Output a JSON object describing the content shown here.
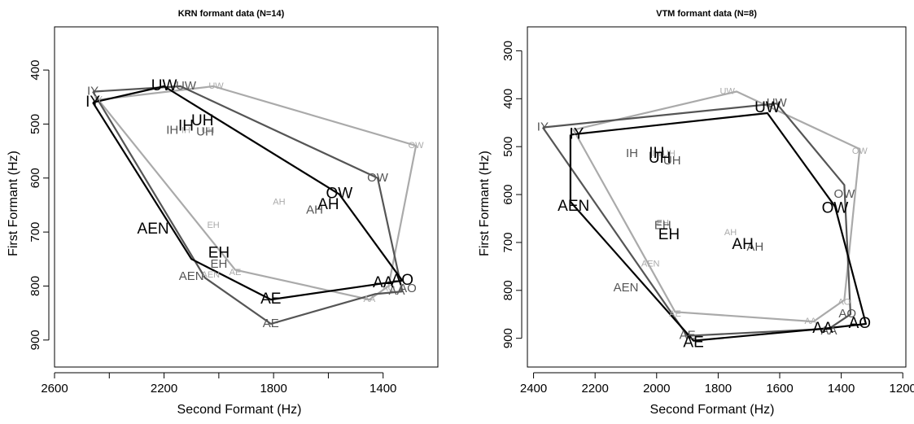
{
  "chart_data": [
    {
      "type": "scatter",
      "title": "KRN formant data (N=14)",
      "xlabel": "Second Formant (Hz)",
      "ylabel": "First Formant (Hz)",
      "xlim": [
        2600,
        1200
      ],
      "ylim": [
        950,
        320
      ],
      "xticks": [
        2600,
        2200,
        1800,
        1400
      ],
      "xminor": [
        2400,
        2000,
        1600
      ],
      "yticks": [
        400,
        500,
        600,
        700,
        800,
        900
      ],
      "series": [
        {
          "color": "#000000",
          "label_size": 19,
          "polygon": [
            [
              2460,
              460
            ],
            [
              2200,
              430
            ],
            [
              1560,
              630
            ],
            [
              1330,
              790
            ],
            [
              1400,
              795
            ],
            [
              1810,
              825
            ],
            [
              2100,
              750
            ],
            [
              2460,
              460
            ]
          ],
          "points": [
            {
              "label": "IY",
              "x": 2460,
              "y": 460
            },
            {
              "label": "UW",
              "x": 2200,
              "y": 430
            },
            {
              "label": "OW",
              "x": 1560,
              "y": 630
            },
            {
              "label": "AO",
              "x": 1330,
              "y": 790
            },
            {
              "label": "AA",
              "x": 1400,
              "y": 795
            },
            {
              "label": "AE",
              "x": 1810,
              "y": 825
            },
            {
              "label": "EH",
              "x": 2000,
              "y": 740
            },
            {
              "label": "AEN",
              "x": 2240,
              "y": 695
            },
            {
              "label": "IH",
              "x": 2120,
              "y": 505
            },
            {
              "label": "UH",
              "x": 2060,
              "y": 495
            },
            {
              "label": "AH",
              "x": 1600,
              "y": 650
            }
          ]
        },
        {
          "color": "#555555",
          "label_size": 15,
          "polygon": [
            [
              2460,
              440
            ],
            [
              2140,
              430
            ],
            [
              1420,
              600
            ],
            [
              1330,
              810
            ],
            [
              1430,
              815
            ],
            [
              1810,
              870
            ],
            [
              2050,
              785
            ],
            [
              2460,
              440
            ]
          ],
          "points": [
            {
              "label": "IY",
              "x": 2460,
              "y": 440
            },
            {
              "label": "UW",
              "x": 2120,
              "y": 430
            },
            {
              "label": "OW",
              "x": 1420,
              "y": 600
            },
            {
              "label": "AO",
              "x": 1310,
              "y": 805
            },
            {
              "label": "AA",
              "x": 1350,
              "y": 810
            },
            {
              "label": "AE",
              "x": 1810,
              "y": 870
            },
            {
              "label": "EH",
              "x": 2000,
              "y": 760
            },
            {
              "label": "AEN",
              "x": 2100,
              "y": 783
            },
            {
              "label": "IH",
              "x": 2170,
              "y": 512
            },
            {
              "label": "UH",
              "x": 2050,
              "y": 515
            },
            {
              "label": "AH",
              "x": 1650,
              "y": 660
            }
          ]
        },
        {
          "color": "#aaaaaa",
          "label_size": 11,
          "polygon": [
            [
              2440,
              455
            ],
            [
              2020,
              430
            ],
            [
              1280,
              540
            ],
            [
              1380,
              800
            ],
            [
              1450,
              825
            ],
            [
              1940,
              770
            ],
            [
              2440,
              455
            ]
          ],
          "points": [
            {
              "label": "IY",
              "x": 2440,
              "y": 455
            },
            {
              "label": "UW",
              "x": 2010,
              "y": 430
            },
            {
              "label": "OW",
              "x": 1280,
              "y": 540
            },
            {
              "label": "AO",
              "x": 1380,
              "y": 805
            },
            {
              "label": "AA",
              "x": 1450,
              "y": 825
            },
            {
              "label": "AE",
              "x": 1940,
              "y": 775
            },
            {
              "label": "EH",
              "x": 2020,
              "y": 688
            },
            {
              "label": "AEN",
              "x": 2030,
              "y": 780
            },
            {
              "label": "IH",
              "x": 2120,
              "y": 512
            },
            {
              "label": "UH",
              "x": 2040,
              "y": 512
            },
            {
              "label": "AH",
              "x": 1780,
              "y": 645
            }
          ]
        }
      ]
    },
    {
      "type": "scatter",
      "title": "VTM formant data (N=8)",
      "xlabel": "Second Formant (Hz)",
      "ylabel": "First Formant (Hz)",
      "xlim": [
        2420,
        1190
      ],
      "ylim": [
        960,
        250
      ],
      "xticks": [
        2400,
        2200,
        2000,
        1800,
        1600,
        1400,
        1200
      ],
      "xminor": [],
      "yticks": [
        300,
        400,
        500,
        600,
        700,
        800,
        900
      ],
      "series": [
        {
          "color": "#000000",
          "label_size": 19,
          "polygon": [
            [
              2280,
              475
            ],
            [
              1640,
              430
            ],
            [
              1420,
              625
            ],
            [
              1320,
              870
            ],
            [
              1460,
              880
            ],
            [
              1880,
              905
            ],
            [
              2280,
              615
            ],
            [
              2280,
              475
            ]
          ],
          "points": [
            {
              "label": "IY",
              "x": 2260,
              "y": 475
            },
            {
              "label": "UW",
              "x": 1640,
              "y": 420
            },
            {
              "label": "OW",
              "x": 1420,
              "y": 630
            },
            {
              "label": "AO",
              "x": 1340,
              "y": 870
            },
            {
              "label": "AA",
              "x": 1460,
              "y": 880
            },
            {
              "label": "AE",
              "x": 1880,
              "y": 910
            },
            {
              "label": "EH",
              "x": 1960,
              "y": 685
            },
            {
              "label": "AEN",
              "x": 2270,
              "y": 625
            },
            {
              "label": "IH",
              "x": 2000,
              "y": 515
            },
            {
              "label": "UH",
              "x": 1990,
              "y": 525
            },
            {
              "label": "AH",
              "x": 1720,
              "y": 705
            }
          ]
        },
        {
          "color": "#555555",
          "label_size": 15,
          "polygon": [
            [
              2370,
              460
            ],
            [
              1610,
              410
            ],
            [
              1390,
              580
            ],
            [
              1370,
              850
            ],
            [
              1440,
              880
            ],
            [
              1900,
              895
            ],
            [
              2370,
              460
            ]
          ],
          "points": [
            {
              "label": "IY",
              "x": 2370,
              "y": 460
            },
            {
              "label": "UW",
              "x": 1610,
              "y": 410
            },
            {
              "label": "OW",
              "x": 1390,
              "y": 600
            },
            {
              "label": "AO",
              "x": 1380,
              "y": 850
            },
            {
              "label": "AA",
              "x": 1440,
              "y": 885
            },
            {
              "label": "AE",
              "x": 1900,
              "y": 895
            },
            {
              "label": "EH",
              "x": 1980,
              "y": 665
            },
            {
              "label": "AEN",
              "x": 2100,
              "y": 795
            },
            {
              "label": "IH",
              "x": 2080,
              "y": 515
            },
            {
              "label": "UH",
              "x": 1950,
              "y": 530
            },
            {
              "label": "AH",
              "x": 1680,
              "y": 710
            }
          ]
        },
        {
          "color": "#aaaaaa",
          "label_size": 11,
          "polygon": [
            [
              2270,
              465
            ],
            [
              1740,
              385
            ],
            [
              1340,
              505
            ],
            [
              1390,
              820
            ],
            [
              1490,
              865
            ],
            [
              1940,
              845
            ],
            [
              2270,
              465
            ]
          ],
          "points": [
            {
              "label": "IY",
              "x": 2270,
              "y": 470
            },
            {
              "label": "UW",
              "x": 1770,
              "y": 385
            },
            {
              "label": "OW",
              "x": 1340,
              "y": 510
            },
            {
              "label": "AO",
              "x": 1390,
              "y": 825
            },
            {
              "label": "AA",
              "x": 1500,
              "y": 865
            },
            {
              "label": "AE",
              "x": 1940,
              "y": 850
            },
            {
              "label": "EH",
              "x": 1980,
              "y": 660
            },
            {
              "label": "AEN",
              "x": 2020,
              "y": 745
            },
            {
              "label": "IH",
              "x": 2000,
              "y": 515
            },
            {
              "label": "UH",
              "x": 1960,
              "y": 515
            },
            {
              "label": "AH",
              "x": 1760,
              "y": 680
            }
          ]
        }
      ]
    }
  ]
}
